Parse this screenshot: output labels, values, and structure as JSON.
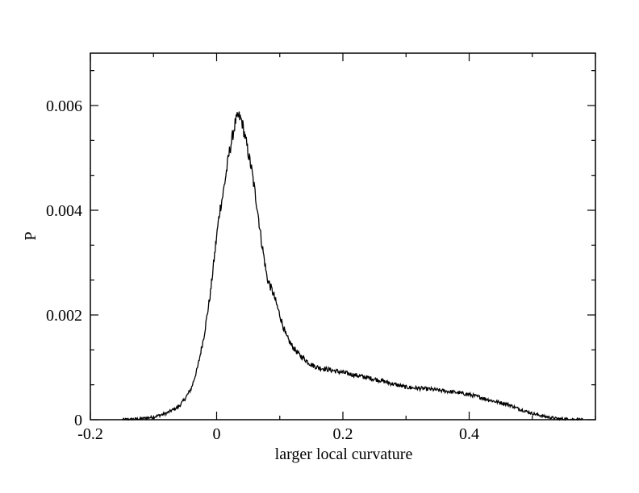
{
  "chart_data": {
    "type": "line",
    "title": "",
    "xlabel": "larger local curvature",
    "ylabel": "P",
    "xlim": [
      -0.2,
      0.6
    ],
    "ylim": [
      0,
      0.007
    ],
    "x_ticks": [
      -0.2,
      0,
      0.2,
      0.4
    ],
    "x_tick_labels": [
      "-0.2",
      "0",
      "0.2",
      "0.4"
    ],
    "y_ticks": [
      0,
      0.002,
      0.004,
      0.006
    ],
    "y_tick_labels": [
      "0",
      "0.002",
      "0.004",
      "0.006"
    ],
    "grid": false,
    "line_color": "#000000",
    "series": [
      {
        "x": [
          -0.15,
          -0.12,
          -0.1,
          -0.08,
          -0.06,
          -0.05,
          -0.04,
          -0.03,
          -0.02,
          -0.01,
          0.0,
          0.005,
          0.01,
          0.015,
          0.02,
          0.025,
          0.03,
          0.035,
          0.04,
          0.045,
          0.05,
          0.055,
          0.06,
          0.065,
          0.07,
          0.075,
          0.08,
          0.09,
          0.1,
          0.11,
          0.12,
          0.13,
          0.14,
          0.15,
          0.16,
          0.18,
          0.2,
          0.22,
          0.24,
          0.26,
          0.28,
          0.3,
          0.32,
          0.34,
          0.36,
          0.38,
          0.4,
          0.42,
          0.44,
          0.46,
          0.48,
          0.5,
          0.52,
          0.54,
          0.56,
          0.58
        ],
        "y": [
          0.0,
          2e-05,
          5e-05,
          0.00012,
          0.00025,
          0.0004,
          0.0006,
          0.001,
          0.0016,
          0.0024,
          0.0035,
          0.004,
          0.0043,
          0.0047,
          0.0051,
          0.0054,
          0.0057,
          0.0058,
          0.0057,
          0.0054,
          0.0051,
          0.0048,
          0.0044,
          0.004,
          0.0035,
          0.0031,
          0.0027,
          0.0024,
          0.002,
          0.0016,
          0.0014,
          0.00125,
          0.00115,
          0.00105,
          0.001,
          0.00095,
          0.0009,
          0.00085,
          0.0008,
          0.00075,
          0.00068,
          0.00062,
          0.0006,
          0.00058,
          0.00055,
          0.00052,
          0.00048,
          0.00042,
          0.00035,
          0.0003,
          0.0002,
          0.00012,
          6e-05,
          2e-05,
          1e-05,
          0.0
        ]
      }
    ]
  }
}
